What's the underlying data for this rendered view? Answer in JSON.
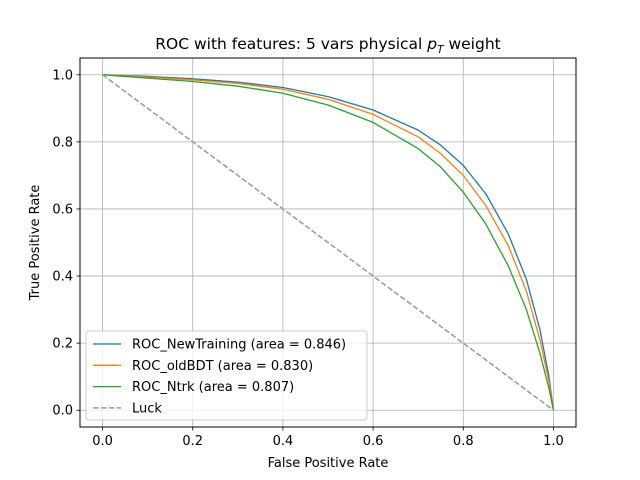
{
  "chart_data": {
    "type": "line",
    "title_main": "ROC with features: 5 vars physical ",
    "title_math": "p",
    "title_sub": "T",
    "title_end": " weight",
    "xlabel": "False Positive Rate",
    "ylabel": "True Positive Rate",
    "xlim": [
      -0.05,
      1.05
    ],
    "ylim": [
      -0.05,
      1.05
    ],
    "xticks": [
      "0.0",
      "0.2",
      "0.4",
      "0.6",
      "0.8",
      "1.0"
    ],
    "yticks": [
      "0.0",
      "0.2",
      "0.4",
      "0.6",
      "0.8",
      "1.0"
    ],
    "grid": true,
    "legend_position": "lower-left",
    "series": [
      {
        "name": "ROC_NewTraining (area = 0.846)",
        "color": "#1f77b4",
        "x": [
          0.0,
          0.1,
          0.2,
          0.3,
          0.4,
          0.5,
          0.6,
          0.7,
          0.75,
          0.8,
          0.85,
          0.9,
          0.94,
          0.97,
          0.99,
          1.0
        ],
        "y": [
          1.0,
          0.995,
          0.988,
          0.978,
          0.962,
          0.935,
          0.895,
          0.835,
          0.79,
          0.73,
          0.645,
          0.525,
          0.39,
          0.24,
          0.1,
          0.0
        ]
      },
      {
        "name": "ROC_oldBDT (area = 0.830)",
        "color": "#ff7f0e",
        "x": [
          0.0,
          0.1,
          0.2,
          0.3,
          0.4,
          0.5,
          0.6,
          0.7,
          0.75,
          0.8,
          0.85,
          0.9,
          0.94,
          0.97,
          0.99,
          1.0
        ],
        "y": [
          1.0,
          0.993,
          0.985,
          0.974,
          0.957,
          0.927,
          0.882,
          0.815,
          0.765,
          0.7,
          0.61,
          0.49,
          0.355,
          0.21,
          0.085,
          0.0
        ]
      },
      {
        "name": "ROC_Ntrk (area = 0.807)",
        "color": "#2ca02c",
        "x": [
          0.0,
          0.1,
          0.2,
          0.3,
          0.4,
          0.5,
          0.6,
          0.7,
          0.75,
          0.8,
          0.85,
          0.9,
          0.94,
          0.97,
          0.99,
          1.0
        ],
        "y": [
          1.0,
          0.99,
          0.98,
          0.966,
          0.945,
          0.91,
          0.858,
          0.78,
          0.725,
          0.65,
          0.555,
          0.43,
          0.3,
          0.17,
          0.065,
          0.0
        ]
      },
      {
        "name": "Luck",
        "color": "#999999",
        "dashed": true,
        "x": [
          0.0,
          1.0
        ],
        "y": [
          1.0,
          0.0
        ]
      }
    ]
  }
}
